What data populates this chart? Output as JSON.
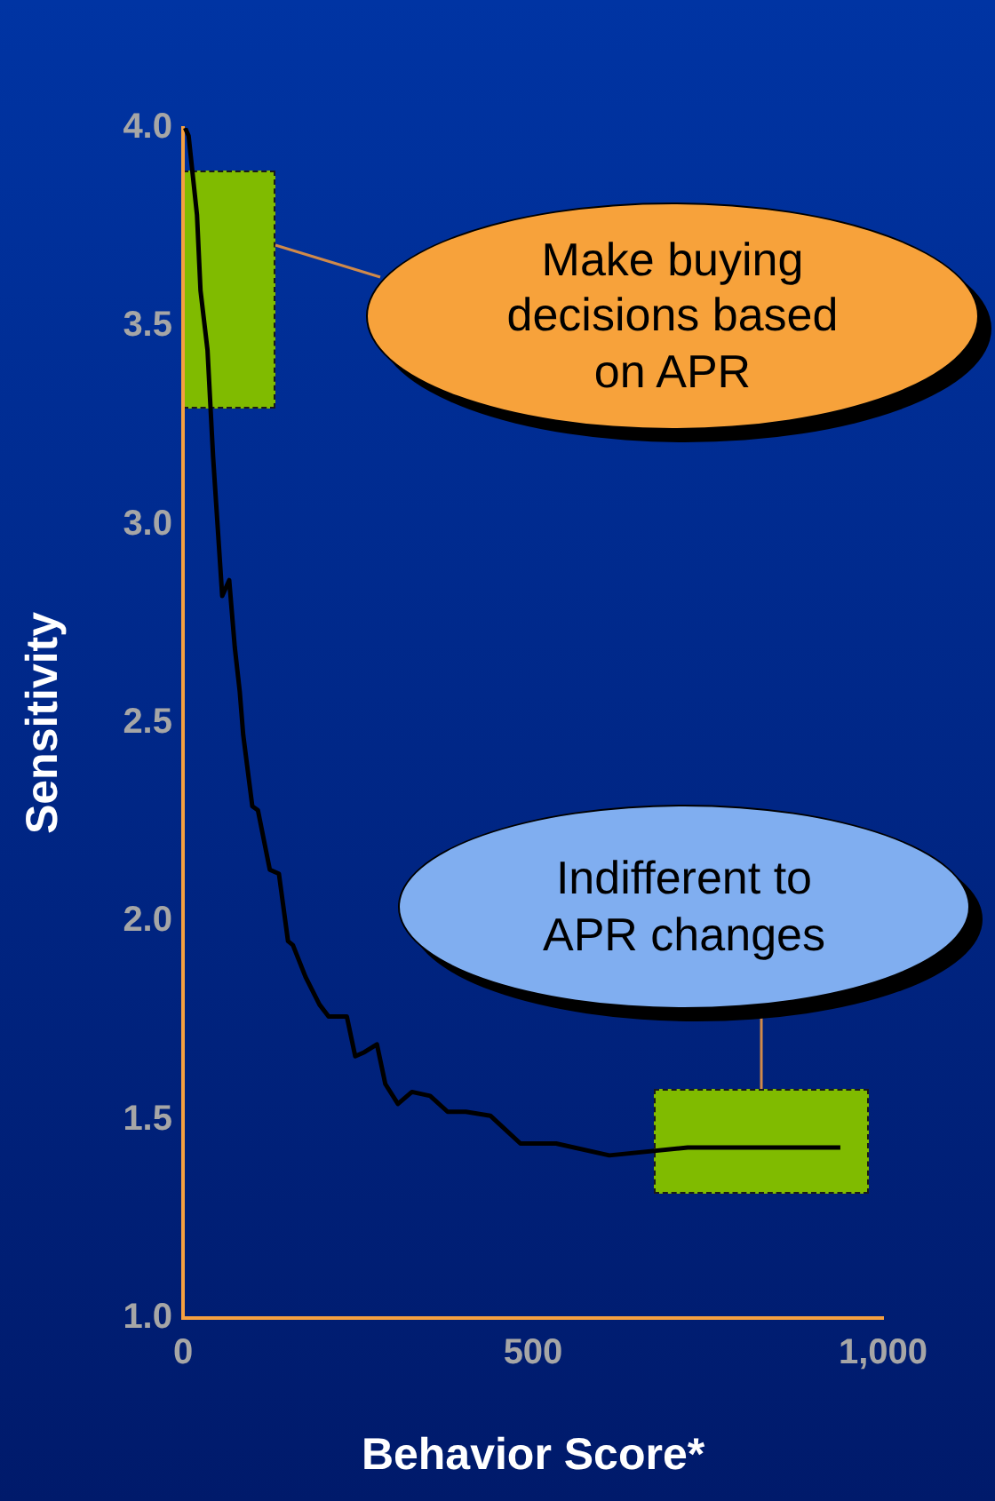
{
  "chart_data": {
    "type": "line",
    "xlabel": "Behavior Score*",
    "ylabel": "Sensitivity",
    "xlim": [
      0,
      1000
    ],
    "xticks": [
      0,
      500,
      {
        "value": 1000,
        "label": "1,000"
      }
    ],
    "ylim": [
      1,
      4
    ],
    "yticks": [
      {
        "value": 1,
        "label": "1.0"
      },
      {
        "value": 1.5,
        "label": "1.5"
      },
      {
        "value": 2,
        "label": "2.0"
      },
      {
        "value": 2.5,
        "label": "2.5"
      },
      {
        "value": 3,
        "label": "3.0"
      },
      {
        "value": 3.5,
        "label": "3.5"
      },
      {
        "value": 4,
        "label": "4.0"
      }
    ],
    "grid": false,
    "legend": false,
    "series": [
      {
        "color": "#000000",
        "x": [
          3,
          8,
          20,
          25,
          35,
          43,
          56,
          66,
          74,
          81,
          86,
          99,
          107,
          124,
          137,
          150,
          157,
          175,
          195,
          208,
          234,
          246,
          259,
          277,
          289,
          307,
          327,
          353,
          378,
          404,
          439,
          482,
          533,
          609,
          721,
          939
        ],
        "values": [
          4.0,
          3.98,
          3.78,
          3.59,
          3.44,
          3.17,
          2.82,
          2.86,
          2.69,
          2.58,
          2.47,
          2.29,
          2.28,
          2.13,
          2.12,
          1.95,
          1.94,
          1.86,
          1.79,
          1.76,
          1.76,
          1.66,
          1.67,
          1.69,
          1.59,
          1.54,
          1.57,
          1.56,
          1.52,
          1.52,
          1.51,
          1.44,
          1.44,
          1.41,
          1.43,
          1.43
        ]
      }
    ],
    "annotations": [
      "Make buying decisions based on APR",
      "Indifferent to APR changes"
    ]
  }
}
